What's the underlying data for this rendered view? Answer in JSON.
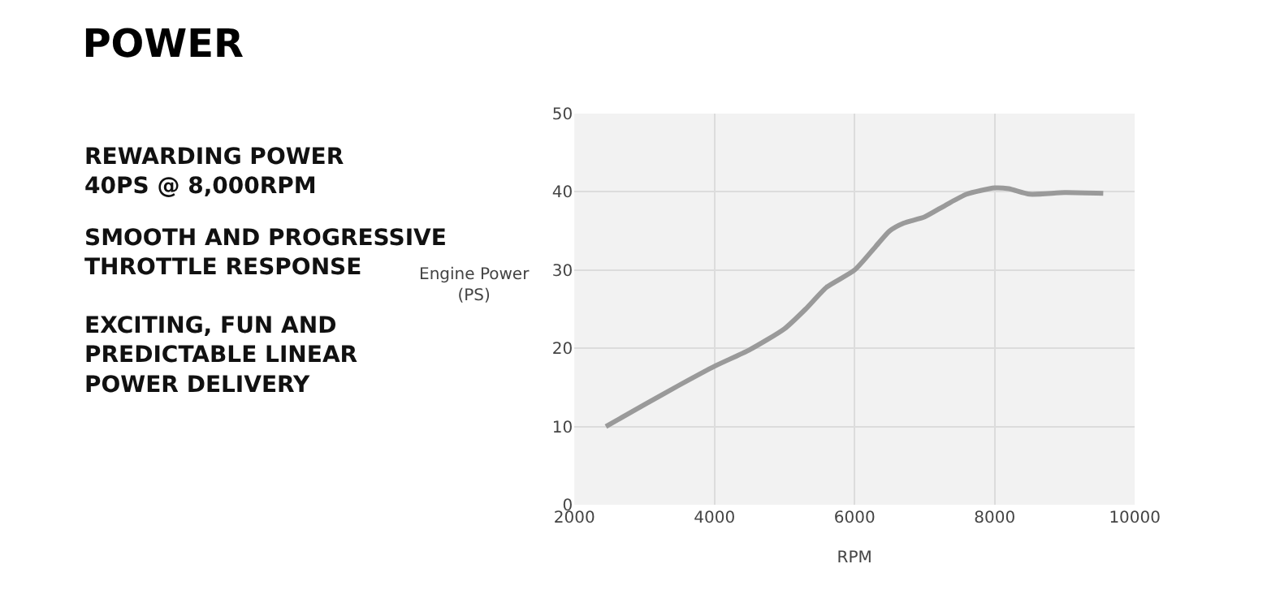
{
  "chart_data": {
    "type": "line",
    "title": "POWER",
    "xlabel": "RPM",
    "ylabel": "Engine Power\n(PS)",
    "annotations": [
      "REWARDING POWER\n40PS @ 8,000RPM",
      "SMOOTH AND PROGRESSIVE\nTHROTTLE RESPONSE",
      "EXCITING, FUN AND\nPREDICTABLE LINEAR\nPOWER DELIVERY"
    ],
    "x": [
      2450,
      3000,
      3500,
      4000,
      4500,
      5000,
      5300,
      5600,
      6000,
      6300,
      6500,
      6700,
      7000,
      7300,
      7600,
      8000,
      8200,
      8500,
      9000,
      9550
    ],
    "series": [
      {
        "color": "#9a9a9a",
        "values": [
          10,
          12.8,
          15.3,
          17.7,
          19.8,
          22.5,
          25,
          27.8,
          30,
          33,
          35,
          36,
          36.8,
          38.3,
          39.7,
          40.5,
          40.4,
          39.7,
          39.9,
          39.8
        ]
      }
    ],
    "xlim": [
      2000,
      10000
    ],
    "xticks": [
      2000,
      4000,
      6000,
      8000,
      10000
    ],
    "ylim": [
      0,
      50
    ],
    "yticks": [
      0,
      10,
      20,
      30,
      40,
      50
    ],
    "grid": true,
    "legend": false,
    "marker": "none",
    "line_style": "solid"
  }
}
